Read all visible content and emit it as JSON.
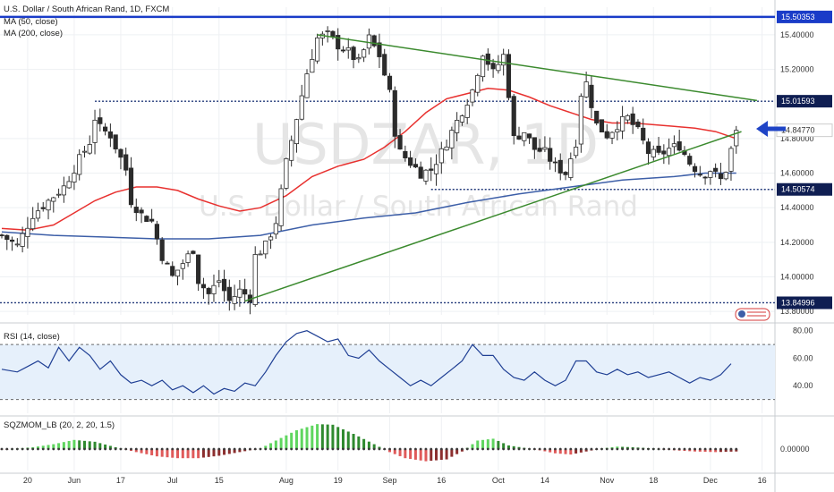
{
  "header": {
    "title": "U.S. Dollar / South African Rand, 1D, FXCM",
    "ma_labels": [
      "MA (50, close)",
      "MA (200, close)"
    ]
  },
  "watermark": {
    "symbol": "USDZAR, 1D",
    "name": "U.S. Dollar / South African Rand"
  },
  "colors": {
    "up": "#2e2e2e",
    "down": "#3a3a3a",
    "ma50": "#e8312f",
    "ma200": "#3d5fa8",
    "trend": "#3b8a2e",
    "resistance": "#1a3cc8",
    "arrow": "#1f44c6",
    "rsi_line": "#1f3f94",
    "rsi_band": "#e6f0fb",
    "sqz_up": "#5fd65f",
    "sqz_down": "#e05a5a",
    "sqz_up_fade": "#2f8a2f",
    "sqz_down_fade": "#8c2e2e"
  },
  "chart_data": [
    {
      "type": "candlestick",
      "panel": "price",
      "symbol": "USDZAR",
      "timeframe": "1D",
      "ylim": [
        13.78,
        15.56
      ],
      "y_ticks": [
        "15.40000",
        "15.20000",
        "14.80000",
        "14.60000",
        "14.40000",
        "14.20000",
        "14.00000",
        "13.80000"
      ],
      "x_ticks": [
        "20",
        "Jun",
        "17",
        "Jul",
        "15",
        "Aug",
        "19",
        "Sep",
        "16",
        "Oct",
        "14",
        "Nov",
        "18",
        "Dec",
        "16"
      ],
      "candle_count": 143,
      "ohlc_summary": {
        "period_high": 15.50353,
        "period_low": 13.84996,
        "last_close": 14.8477
      },
      "close_path": [
        [
          0,
          14.24
        ],
        [
          3,
          14.18
        ],
        [
          6,
          14.36
        ],
        [
          9,
          14.44
        ],
        [
          12,
          14.52
        ],
        [
          15,
          14.68
        ],
        [
          17,
          14.78
        ],
        [
          18,
          14.92
        ],
        [
          19,
          14.86
        ],
        [
          21,
          14.82
        ],
        [
          24,
          14.62
        ],
        [
          25,
          14.44
        ],
        [
          27,
          14.36
        ],
        [
          29,
          14.32
        ],
        [
          31,
          14.12
        ],
        [
          33,
          14.0
        ],
        [
          35,
          14.08
        ],
        [
          37,
          14.16
        ],
        [
          38,
          13.98
        ],
        [
          40,
          13.9
        ],
        [
          42,
          13.98
        ],
        [
          44,
          13.86
        ],
        [
          46,
          13.92
        ],
        [
          48,
          13.88
        ],
        [
          49,
          14.12
        ],
        [
          51,
          14.18
        ],
        [
          53,
          14.32
        ],
        [
          55,
          14.66
        ],
        [
          57,
          14.92
        ],
        [
          59,
          15.18
        ],
        [
          61,
          15.38
        ],
        [
          63,
          15.4
        ],
        [
          65,
          15.34
        ],
        [
          67,
          15.3
        ],
        [
          69,
          15.24
        ],
        [
          71,
          15.38
        ],
        [
          73,
          15.28
        ],
        [
          75,
          15.06
        ],
        [
          76,
          14.84
        ],
        [
          77,
          14.72
        ],
        [
          79,
          14.66
        ],
        [
          81,
          14.6
        ],
        [
          83,
          14.62
        ],
        [
          85,
          14.72
        ],
        [
          87,
          14.84
        ],
        [
          89,
          14.96
        ],
        [
          91,
          15.08
        ],
        [
          93,
          15.3
        ],
        [
          95,
          15.18
        ],
        [
          97,
          15.28
        ],
        [
          98,
          15.06
        ],
        [
          99,
          14.8
        ],
        [
          101,
          14.84
        ],
        [
          103,
          14.74
        ],
        [
          105,
          14.72
        ],
        [
          107,
          14.64
        ],
        [
          109,
          14.6
        ],
        [
          111,
          14.78
        ],
        [
          112,
          15.06
        ],
        [
          113,
          15.12
        ],
        [
          115,
          14.88
        ],
        [
          117,
          14.82
        ],
        [
          119,
          14.88
        ],
        [
          121,
          14.92
        ],
        [
          123,
          14.84
        ],
        [
          125,
          14.72
        ],
        [
          127,
          14.7
        ],
        [
          129,
          14.74
        ],
        [
          131,
          14.76
        ],
        [
          133,
          14.66
        ],
        [
          135,
          14.6
        ],
        [
          136,
          14.6
        ],
        [
          137,
          14.62
        ],
        [
          139,
          14.56
        ],
        [
          140,
          14.62
        ],
        [
          142,
          14.85
        ]
      ],
      "ma50": [
        [
          0,
          14.28
        ],
        [
          5,
          14.27
        ],
        [
          10,
          14.3
        ],
        [
          14,
          14.37
        ],
        [
          18,
          14.44
        ],
        [
          22,
          14.49
        ],
        [
          26,
          14.52
        ],
        [
          30,
          14.52
        ],
        [
          34,
          14.5
        ],
        [
          38,
          14.45
        ],
        [
          42,
          14.41
        ],
        [
          46,
          14.38
        ],
        [
          50,
          14.4
        ],
        [
          55,
          14.47
        ],
        [
          60,
          14.58
        ],
        [
          65,
          14.64
        ],
        [
          70,
          14.68
        ],
        [
          74,
          14.75
        ],
        [
          78,
          14.84
        ],
        [
          82,
          14.95
        ],
        [
          86,
          15.03
        ],
        [
          90,
          15.06
        ],
        [
          94,
          15.09
        ],
        [
          98,
          15.08
        ],
        [
          102,
          15.04
        ],
        [
          106,
          14.99
        ],
        [
          110,
          14.95
        ],
        [
          114,
          14.91
        ],
        [
          118,
          14.89
        ],
        [
          122,
          14.89
        ],
        [
          126,
          14.88
        ],
        [
          130,
          14.87
        ],
        [
          134,
          14.86
        ],
        [
          138,
          14.84
        ],
        [
          142,
          14.8
        ]
      ],
      "ma200": [
        [
          0,
          14.26
        ],
        [
          10,
          14.24
        ],
        [
          20,
          14.23
        ],
        [
          30,
          14.22
        ],
        [
          40,
          14.22
        ],
        [
          50,
          14.24
        ],
        [
          60,
          14.3
        ],
        [
          70,
          14.34
        ],
        [
          80,
          14.37
        ],
        [
          90,
          14.43
        ],
        [
          100,
          14.48
        ],
        [
          110,
          14.52
        ],
        [
          120,
          14.56
        ],
        [
          130,
          14.58
        ],
        [
          136,
          14.6
        ],
        [
          142,
          14.6
        ]
      ],
      "levels": [
        {
          "label": "15.50353",
          "value": 15.50353,
          "style": "solid"
        },
        {
          "label": "15.01593",
          "value": 15.01593,
          "style": "dotted"
        },
        {
          "label": "14.50574",
          "value": 14.50574,
          "style": "dotted"
        },
        {
          "label": "13.84996",
          "value": 13.84996,
          "style": "dotted"
        }
      ],
      "price_label": {
        "label": "14.84770",
        "value": 14.8477
      },
      "trendlines": [
        {
          "from": [
            61,
            15.4
          ],
          "to": [
            146,
            15.02
          ]
        },
        {
          "from": [
            47,
            13.86
          ],
          "to": [
            143,
            14.84
          ]
        }
      ]
    },
    {
      "type": "line",
      "panel": "rsi",
      "title": "RSI (14, close)",
      "ylim": [
        20,
        85
      ],
      "y_ticks": [
        "80.00",
        "60.00",
        "40.00"
      ],
      "band": [
        30,
        70
      ],
      "values": [
        [
          0,
          52
        ],
        [
          3,
          50
        ],
        [
          5,
          54
        ],
        [
          7,
          58
        ],
        [
          9,
          53
        ],
        [
          11,
          68
        ],
        [
          13,
          58
        ],
        [
          15,
          68
        ],
        [
          17,
          62
        ],
        [
          19,
          52
        ],
        [
          21,
          58
        ],
        [
          23,
          48
        ],
        [
          25,
          42
        ],
        [
          27,
          44
        ],
        [
          29,
          40
        ],
        [
          31,
          44
        ],
        [
          33,
          37
        ],
        [
          35,
          40
        ],
        [
          37,
          35
        ],
        [
          39,
          40
        ],
        [
          41,
          34
        ],
        [
          43,
          38
        ],
        [
          45,
          36
        ],
        [
          47,
          42
        ],
        [
          49,
          40
        ],
        [
          51,
          50
        ],
        [
          53,
          62
        ],
        [
          55,
          72
        ],
        [
          57,
          78
        ],
        [
          59,
          80
        ],
        [
          61,
          76
        ],
        [
          63,
          72
        ],
        [
          65,
          74
        ],
        [
          67,
          62
        ],
        [
          69,
          60
        ],
        [
          71,
          66
        ],
        [
          73,
          58
        ],
        [
          75,
          52
        ],
        [
          77,
          46
        ],
        [
          79,
          40
        ],
        [
          81,
          44
        ],
        [
          83,
          40
        ],
        [
          85,
          46
        ],
        [
          87,
          52
        ],
        [
          89,
          58
        ],
        [
          91,
          70
        ],
        [
          93,
          62
        ],
        [
          95,
          62
        ],
        [
          97,
          52
        ],
        [
          99,
          46
        ],
        [
          101,
          44
        ],
        [
          103,
          50
        ],
        [
          105,
          44
        ],
        [
          107,
          40
        ],
        [
          109,
          44
        ],
        [
          111,
          58
        ],
        [
          113,
          58
        ],
        [
          115,
          50
        ],
        [
          117,
          48
        ],
        [
          119,
          52
        ],
        [
          121,
          48
        ],
        [
          123,
          50
        ],
        [
          125,
          46
        ],
        [
          127,
          48
        ],
        [
          129,
          50
        ],
        [
          131,
          46
        ],
        [
          133,
          42
        ],
        [
          135,
          46
        ],
        [
          137,
          44
        ],
        [
          139,
          48
        ],
        [
          141,
          56
        ]
      ]
    },
    {
      "type": "bar",
      "panel": "squeeze_momentum",
      "title": "SQZMOM_LB (20, 2, 20, 1.5)",
      "ylim": [
        -1,
        1
      ],
      "y_ticks": [
        "0.00000"
      ],
      "values": [
        [
          0,
          -0.02
        ],
        [
          6,
          0.06
        ],
        [
          10,
          0.16
        ],
        [
          14,
          0.3
        ],
        [
          18,
          0.24
        ],
        [
          22,
          0.06
        ],
        [
          26,
          -0.1
        ],
        [
          30,
          -0.24
        ],
        [
          34,
          -0.3
        ],
        [
          38,
          -0.3
        ],
        [
          42,
          -0.22
        ],
        [
          46,
          -0.1
        ],
        [
          50,
          0.02
        ],
        [
          53,
          0.28
        ],
        [
          57,
          0.62
        ],
        [
          61,
          0.82
        ],
        [
          64,
          0.8
        ],
        [
          68,
          0.5
        ],
        [
          72,
          0.16
        ],
        [
          75,
          -0.1
        ],
        [
          78,
          -0.3
        ],
        [
          82,
          -0.4
        ],
        [
          86,
          -0.34
        ],
        [
          89,
          -0.08
        ],
        [
          92,
          0.28
        ],
        [
          95,
          0.34
        ],
        [
          98,
          0.12
        ],
        [
          101,
          0.04
        ],
        [
          104,
          -0.04
        ],
        [
          107,
          -0.14
        ],
        [
          110,
          -0.18
        ],
        [
          113,
          -0.08
        ],
        [
          116,
          0.02
        ],
        [
          119,
          0.08
        ],
        [
          122,
          0.06
        ],
        [
          126,
          0.02
        ],
        [
          130,
          -0.04
        ],
        [
          134,
          -0.08
        ],
        [
          138,
          -0.1
        ],
        [
          142,
          -0.08
        ]
      ]
    }
  ]
}
